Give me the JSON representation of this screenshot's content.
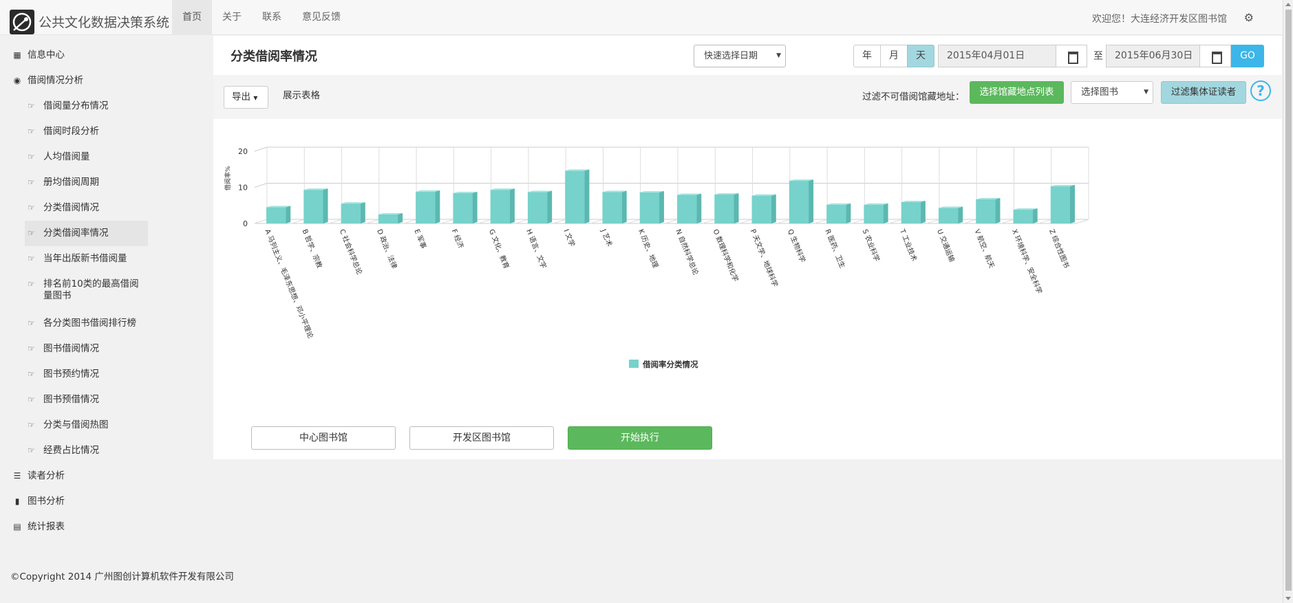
{
  "brand": {
    "title": "公共文化数据决策系统"
  },
  "nav": {
    "items": [
      "首页",
      "关于",
      "联系",
      "意见反馈"
    ]
  },
  "header": {
    "welcome": "欢迎您！大连经济开发区图书馆"
  },
  "sidebar": {
    "sections": [
      {
        "label": "信息中心",
        "icon": "grid-icon"
      },
      {
        "label": "借阅情况分析",
        "icon": "eye-icon"
      }
    ],
    "subitems": [
      "借阅量分布情况",
      "借阅时段分析",
      "人均借阅量",
      "册均借阅周期",
      "分类借阅情况",
      "分类借阅率情况",
      "当年出版新书借阅量",
      "排名前10类的最高借阅量图书",
      "各分类图书借阅排行榜",
      "图书借阅情况",
      "图书预约情况",
      "图书预借情况",
      "分类与借阅热图",
      "经费占比情况"
    ],
    "active_subitem": "分类借阅率情况",
    "bottom_sections": [
      {
        "label": "读者分析",
        "icon": "list-icon"
      },
      {
        "label": "图书分析",
        "icon": "book-icon"
      },
      {
        "label": "统计报表",
        "icon": "table-icon"
      }
    ]
  },
  "page": {
    "title": "分类借阅率情况",
    "quick_date": "快速选择日期",
    "period_buttons": [
      "年",
      "月",
      "天"
    ],
    "active_period": "天",
    "start_date": "2015年04月01日",
    "to_label": "至",
    "end_date": "2015年06月30日",
    "go_label": "GO"
  },
  "toolbar": {
    "export_label": "导出",
    "show_table_label": "展示表格",
    "filter_label": "过滤不可借阅馆藏地址：",
    "location_list_button": "选择馆藏地点列表",
    "book_select": "选择图书",
    "filter_readers_button": "过滤集体证读者",
    "help": "?"
  },
  "actions": {
    "center_library": "中心图书馆",
    "dev_zone_library": "开发区图书馆",
    "run": "开始执行"
  },
  "footer": {
    "copyright": "©Copyright 2014 广州图创计算机软件开发有限公司"
  },
  "colors": {
    "bar": "#76d2cb",
    "bar_side": "#5bb8b1",
    "bar_top": "#a6e4df",
    "accent": "#3cb6e8",
    "green": "#5cb85c"
  },
  "chart_data": {
    "type": "bar",
    "title": "",
    "ylabel": "借阅率%",
    "ylim": [
      0,
      20
    ],
    "yticks": [
      0,
      10,
      20
    ],
    "categories": [
      "A 马列主义、毛泽东思想、邓小平理论",
      "B 哲学、宗教",
      "C 社会科学总论",
      "D 政治、法律",
      "E 军事",
      "F 经济",
      "G 文化、教育",
      "H 语言、文字",
      "I 文学",
      "J 艺术",
      "K 历史、地理",
      "N 自然科学总论",
      "O 数理科学和化学",
      "P 天文学、地球科学",
      "Q 生物科学",
      "R 医药、卫生",
      "S 农业科学",
      "T 工业技术",
      "U 交通运输",
      "V 航空、航天",
      "X 环境科学、安全科学",
      "Z 综合性图书"
    ],
    "series": [
      {
        "name": "借阅率分类情况",
        "values": [
          4.5,
          9.3,
          5.5,
          2.5,
          8.8,
          8.4,
          9.3,
          8.7,
          14.6,
          8.7,
          8.6,
          7.9,
          8.0,
          7.7,
          11.8,
          5.2,
          5.2,
          5.9,
          4.3,
          6.7,
          3.8,
          10.3
        ]
      }
    ],
    "legend": "bottom-center",
    "grid": true
  }
}
